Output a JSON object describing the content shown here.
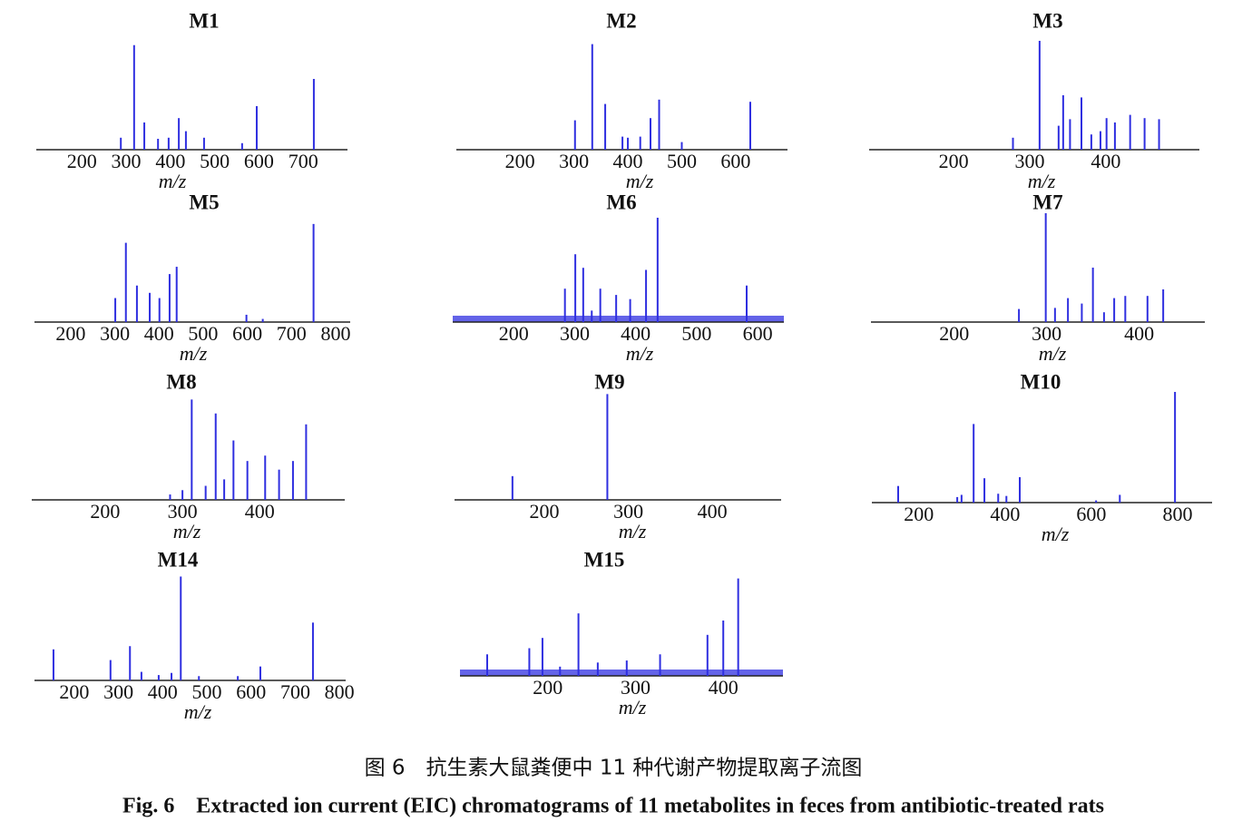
{
  "chart_data": [
    {
      "type": "stem",
      "title": "M1",
      "xlabel": "m/z",
      "color": "#2f2fe0",
      "xlim": [
        97,
        800
      ],
      "ylim": [
        0,
        100
      ],
      "xticks": [
        200,
        300,
        400,
        500,
        600,
        700
      ],
      "x": [
        288,
        318,
        341,
        372,
        396,
        419,
        435,
        476,
        562,
        595,
        724
      ],
      "values": [
        11,
        96,
        25,
        10,
        11,
        29,
        17,
        11,
        6,
        40,
        65
      ]
    },
    {
      "type": "stem",
      "title": "M2",
      "xlabel": "m/z",
      "color": "#2f2fe0",
      "xlim": [
        82,
        696
      ],
      "ylim": [
        0,
        100
      ],
      "xticks": [
        200,
        300,
        400,
        500,
        600
      ],
      "x": [
        302,
        334,
        358,
        390,
        400,
        423,
        442,
        458,
        500,
        627
      ],
      "values": [
        27,
        97,
        42,
        12,
        11,
        12,
        29,
        46,
        7,
        44
      ]
    },
    {
      "type": "stem",
      "title": "M3",
      "xlabel": "m/z",
      "color": "#2f2fe0",
      "xlim": [
        89,
        523
      ],
      "ylim": [
        0,
        100
      ],
      "xticks": [
        200,
        300,
        400
      ],
      "x": [
        278,
        313,
        338,
        344,
        353,
        368,
        381,
        393,
        401,
        412,
        432,
        451,
        470
      ],
      "values": [
        11,
        100,
        22,
        50,
        28,
        48,
        14,
        17,
        29,
        25,
        32,
        29,
        28
      ]
    },
    {
      "type": "stem",
      "title": "M5",
      "xlabel": "m/z",
      "color": "#2f2fe0",
      "xlim": [
        118,
        833
      ],
      "ylim": [
        0,
        100
      ],
      "xticks": [
        200,
        300,
        400,
        500,
        600,
        700,
        800
      ],
      "x": [
        301,
        325,
        350,
        379,
        401,
        424,
        440,
        598,
        635,
        750
      ],
      "values": [
        23,
        76,
        35,
        28,
        23,
        46,
        53,
        7,
        3,
        94
      ]
    },
    {
      "type": "stem",
      "title": "M6",
      "xlabel": "m/z",
      "color": "#2f2fe0",
      "noise": true,
      "xlim": [
        100,
        643
      ],
      "ylim": [
        0,
        100
      ],
      "xticks": [
        200,
        300,
        400,
        500,
        600
      ],
      "x": [
        284,
        301,
        314,
        328,
        342,
        368,
        391,
        417,
        436,
        582
      ],
      "values": [
        32,
        65,
        52,
        11,
        32,
        26,
        22,
        50,
        100,
        35
      ]
    },
    {
      "type": "stem",
      "title": "M7",
      "xlabel": "m/z",
      "color": "#2f2fe0",
      "xlim": [
        110,
        471
      ],
      "ylim": [
        0,
        100
      ],
      "xticks": [
        200,
        300,
        400
      ],
      "x": [
        270,
        299,
        309,
        323,
        338,
        350,
        362,
        373,
        385,
        409,
        426
      ],
      "values": [
        12,
        100,
        13,
        22,
        17,
        50,
        9,
        22,
        24,
        24,
        30
      ]
    },
    {
      "type": "stem",
      "title": "M8",
      "xlabel": "m/z",
      "color": "#2f2fe0",
      "xlim": [
        105,
        510
      ],
      "ylim": [
        0,
        100
      ],
      "xticks": [
        200,
        300,
        400
      ],
      "x": [
        284,
        300,
        312,
        330,
        343,
        354,
        366,
        384,
        407,
        425,
        443,
        460
      ],
      "values": [
        5,
        9,
        93,
        13,
        80,
        19,
        55,
        36,
        41,
        28,
        36,
        70
      ]
    },
    {
      "type": "stem",
      "title": "M9",
      "xlabel": "m/z",
      "color": "#2f2fe0",
      "xlim": [
        93,
        482
      ],
      "ylim": [
        0,
        100
      ],
      "xticks": [
        200,
        300,
        400
      ],
      "x": [
        162,
        275
      ],
      "values": [
        22,
        98
      ]
    },
    {
      "type": "stem",
      "title": "M10",
      "xlabel": "m/z",
      "color": "#2f2fe0",
      "xlim": [
        91,
        880
      ],
      "ylim": [
        0,
        100
      ],
      "xticks": [
        200,
        400,
        600,
        800
      ],
      "x": [
        152,
        289,
        299,
        327,
        352,
        384,
        403,
        434,
        611,
        666,
        794
      ],
      "values": [
        15,
        5,
        7,
        71,
        22,
        8,
        6,
        23,
        2,
        7,
        100
      ]
    },
    {
      "type": "stem",
      "title": "M14",
      "xlabel": "m/z",
      "color": "#2f2fe0",
      "xlim": [
        110,
        814
      ],
      "ylim": [
        0,
        100
      ],
      "xticks": [
        200,
        300,
        400,
        500,
        600,
        700,
        800
      ],
      "x": [
        153,
        282,
        326,
        352,
        391,
        420,
        441,
        482,
        570,
        621,
        740
      ],
      "values": [
        29,
        19,
        32,
        8,
        5,
        7,
        97,
        4,
        4,
        13,
        54
      ]
    },
    {
      "type": "stem",
      "title": "M15",
      "xlabel": "m/z",
      "color": "#2f2fe0",
      "noise": true,
      "xlim": [
        100,
        468
      ],
      "ylim": [
        0,
        100
      ],
      "xticks": [
        200,
        300,
        400
      ],
      "x": [
        131,
        179,
        194,
        214,
        235,
        257,
        290,
        328,
        382,
        400,
        417
      ],
      "values": [
        21,
        27,
        37,
        9,
        61,
        13,
        15,
        21,
        40,
        54,
        95
      ]
    }
  ],
  "caption": {
    "zh": "图 6　抗生素大鼠粪便中 11 种代谢产物提取离子流图",
    "en": "Fig. 6　Extracted ion current (EIC) chromatograms of 11 metabolites in feces from antibiotic-treated rats"
  }
}
